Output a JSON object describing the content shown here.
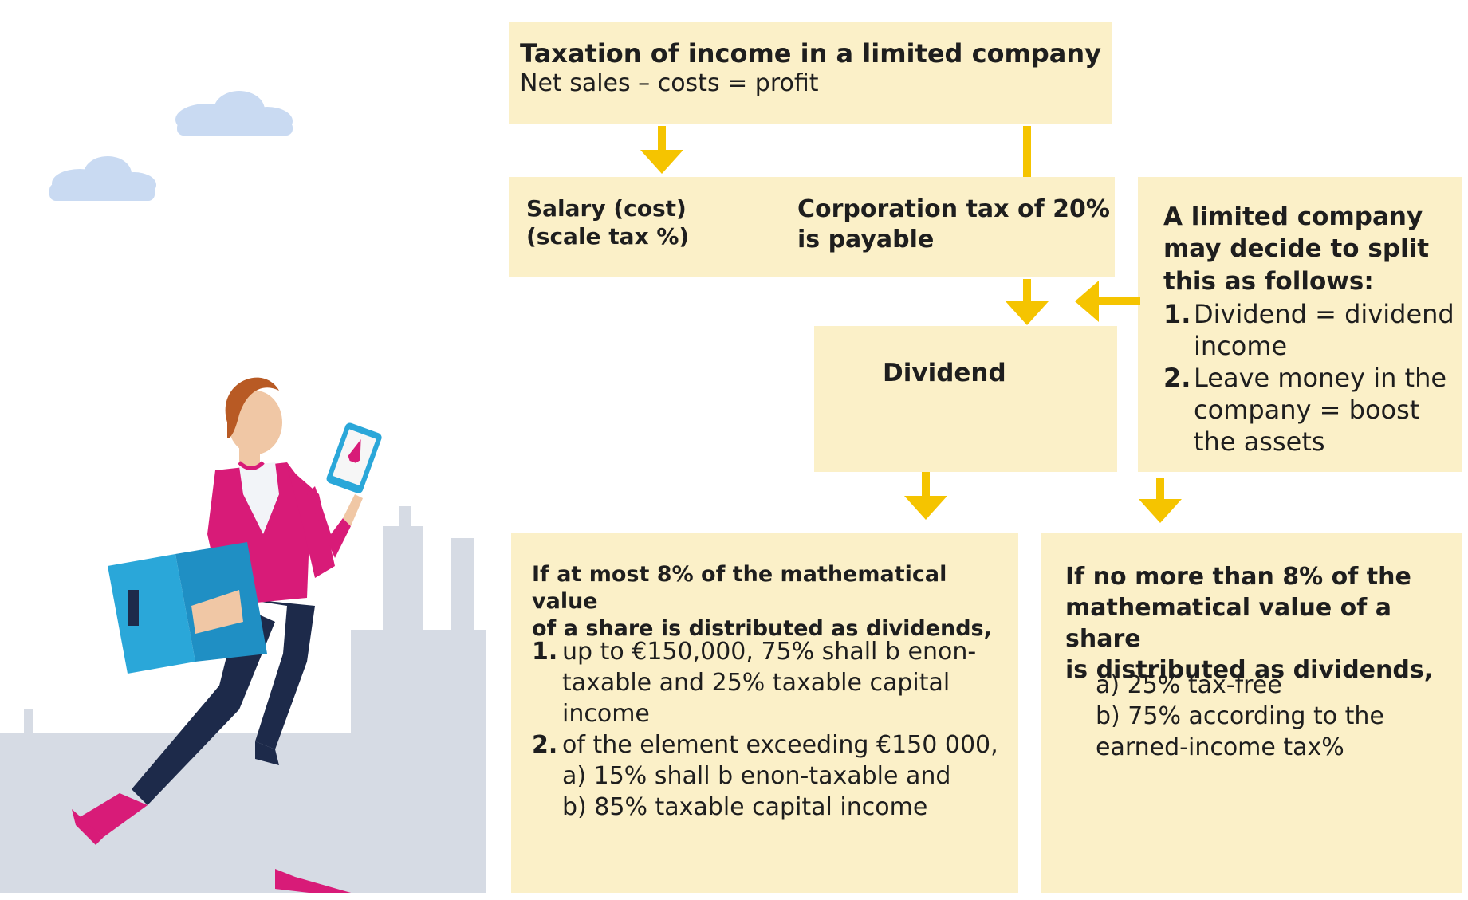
{
  "colors": {
    "box": "#fbf0c8",
    "arrow": "#f5c400",
    "text": "#1e1e1e",
    "magenta": "#d81b78",
    "blue": "#2aa7d9",
    "navy": "#1d2a4a",
    "city": "#d6dbe4"
  },
  "top_box": {
    "title": "Taxation of income in a limited company",
    "subtitle": "Net sales – costs = profit"
  },
  "salary_box": {
    "line1": "Salary (cost)",
    "line2": "(scale tax %)"
  },
  "corp_box": {
    "line1": "Corporation tax of 20%",
    "line2": "is payable"
  },
  "dividend_box": {
    "label": "Dividend"
  },
  "split_box": {
    "heading": [
      "A limited company",
      "may decide to split",
      "this as follows:"
    ],
    "items": [
      {
        "num": "1.",
        "lines": [
          "Dividend = dividend",
          "income"
        ]
      },
      {
        "num": "2.",
        "lines": [
          "Leave money in the",
          "company = boost",
          "the assets"
        ]
      }
    ]
  },
  "left_bottom": {
    "heading": [
      "If at most 8% of the mathematical value",
      "of a share is distributed as dividends,"
    ],
    "items": [
      {
        "num": "1.",
        "lines": [
          "up to €150,000, 75% shall b enon-",
          "taxable and 25% taxable capital",
          "income"
        ]
      },
      {
        "num": "2.",
        "lines": [
          "of the element exceeding €150 000,",
          "a) 15% shall b enon-taxable and",
          "b) 85% taxable capital income"
        ]
      }
    ]
  },
  "right_bottom": {
    "heading": [
      "If no more than 8% of the",
      "mathematical value of a share",
      "is distributed as dividends,"
    ],
    "lines": [
      "a) 25% tax-free",
      "b) 75% according to the",
      "earned-income tax%"
    ]
  }
}
